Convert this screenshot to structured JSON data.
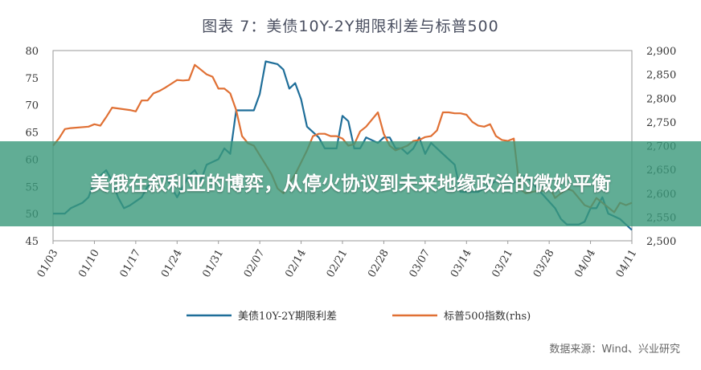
{
  "chart_data": {
    "type": "line",
    "title": "图表 7：美债10Y-2Y期限利差与标普500",
    "x": [
      "01/03",
      "01/04",
      "01/05",
      "01/06",
      "01/07",
      "01/08",
      "01/09",
      "01/10",
      "01/11",
      "01/12",
      "01/13",
      "01/14",
      "01/15",
      "01/16",
      "01/17",
      "01/18",
      "01/19",
      "01/20",
      "01/21",
      "01/22",
      "01/23",
      "01/24",
      "01/25",
      "01/26",
      "01/27",
      "01/28",
      "01/29",
      "01/30",
      "01/31",
      "02/01",
      "02/02",
      "02/03",
      "02/04",
      "02/05",
      "02/06",
      "02/07",
      "02/08",
      "02/09",
      "02/10",
      "02/11",
      "02/12",
      "02/13",
      "02/14",
      "02/15",
      "02/16",
      "02/17",
      "02/18",
      "02/19",
      "02/20",
      "02/21",
      "02/22",
      "02/23",
      "02/24",
      "02/25",
      "02/26",
      "02/27",
      "02/28",
      "03/01",
      "03/02",
      "03/03",
      "03/04",
      "03/05",
      "03/06",
      "03/07",
      "03/08",
      "03/09",
      "03/10",
      "03/11",
      "03/12",
      "03/13",
      "03/14",
      "03/15",
      "03/16",
      "03/17",
      "03/18",
      "03/19",
      "03/20",
      "03/21",
      "03/22",
      "03/23",
      "03/24",
      "03/25",
      "03/26",
      "03/27",
      "03/28",
      "03/29",
      "03/30",
      "03/31",
      "04/01",
      "04/02",
      "04/03",
      "04/04",
      "04/05",
      "04/06",
      "04/07",
      "04/08",
      "04/09",
      "04/10",
      "04/11"
    ],
    "x_tick_labels": [
      "01/03",
      "01/10",
      "01/17",
      "01/24",
      "01/31",
      "02/07",
      "02/14",
      "02/21",
      "02/28",
      "03/07",
      "03/14",
      "03/21",
      "03/28",
      "04/04",
      "04/11"
    ],
    "series": [
      {
        "name": "美债10Y-2Y期限利差",
        "axis": "left",
        "color": "#1f6e99",
        "values": [
          50,
          null,
          50,
          51,
          null,
          52,
          53,
          56,
          57,
          58,
          56,
          53,
          51,
          51.5,
          null,
          53,
          55,
          56,
          57,
          57,
          55,
          53,
          55,
          57,
          58,
          56,
          59,
          null,
          60,
          62,
          61,
          69,
          69,
          69,
          69,
          72,
          78,
          null,
          77.5,
          76.5,
          73,
          74,
          71,
          66,
          65,
          64,
          62,
          62,
          62,
          68,
          67,
          62,
          62,
          64,
          null,
          63,
          64,
          64,
          62,
          62,
          61,
          62,
          64,
          61,
          63,
          62,
          61,
          60,
          59,
          54,
          54,
          54,
          54,
          null,
          null,
          56,
          56,
          55,
          null,
          null,
          57,
          null,
          null,
          null,
          null,
          51,
          49,
          48,
          null,
          48,
          48.5,
          51,
          51,
          53,
          50,
          null,
          49,
          null,
          47
        ]
      },
      {
        "name": "标普500指数(rhs)",
        "axis": "right",
        "color": "#e07034",
        "values": [
          2700,
          2715,
          2735,
          2737,
          null,
          null,
          2740,
          2745,
          2742,
          2760,
          2780,
          null,
          null,
          2775,
          2772,
          2795,
          2795,
          2810,
          2815,
          2822,
          2830,
          2838,
          2837,
          2838,
          2870,
          2860,
          2850,
          2845,
          2820,
          2820,
          2810,
          2775,
          2720,
          2705,
          2700,
          2680,
          2660,
          2640,
          2610,
          2600,
          2620,
          2640,
          2665,
          2690,
          2720,
          2725,
          2725,
          2720,
          2720,
          2715,
          2700,
          2703,
          2730,
          2740,
          2755,
          2770,
          2725,
          2700,
          2690,
          null,
          2700,
          2710,
          2712,
          2718,
          2720,
          2732,
          2770,
          2770,
          2768,
          2768,
          2765,
          2750,
          2742,
          2740,
          2745,
          2720,
          2712,
          2710,
          2715,
          2610,
          2600,
          null,
          2605,
          2605,
          2615,
          2590,
          2600,
          2610,
          2605,
          2590,
          2575,
          2570,
          2590,
          2580,
          2570,
          2560,
          2580,
          2575,
          2580
        ]
      }
    ],
    "y_left": {
      "lim": [
        45,
        80
      ],
      "ticks": [
        45,
        50,
        55,
        60,
        65,
        70,
        75,
        80
      ]
    },
    "y_right": {
      "lim": [
        2500,
        2900
      ],
      "ticks": [
        "2,500",
        "2,550",
        "2,600",
        "2,650",
        "2,700",
        "2,750",
        "2,800",
        "2,850",
        "2,900"
      ]
    },
    "legend": [
      "美债10Y-2Y期限利差",
      "标普500指数(rhs)"
    ],
    "legend_position": "bottom"
  },
  "source": "数据来源：Wind、兴业研究",
  "banner": "美俄在叙利亚的博弈，从停火协议到未来地缘政治的微妙平衡"
}
